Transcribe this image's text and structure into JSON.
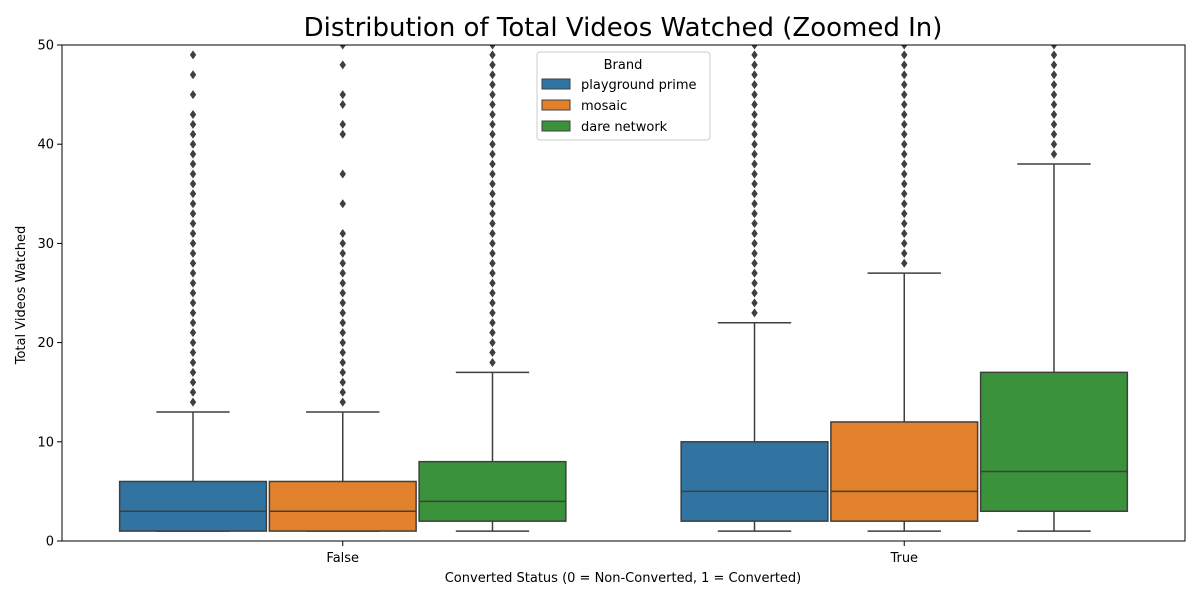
{
  "chart_data": {
    "type": "box",
    "title": "Distribution of Total Videos Watched (Zoomed In)",
    "xlabel": "Converted Status (0 = Non-Converted, 1 = Converted)",
    "ylabel": "Total Videos Watched",
    "ylim": [
      0,
      50
    ],
    "yticks": [
      0,
      10,
      20,
      30,
      40,
      50
    ],
    "categories": [
      "False",
      "True"
    ],
    "legend": {
      "title": "Brand",
      "placement": "top-center"
    },
    "grid": false,
    "series": [
      {
        "name": "playground prime",
        "color": "#3274a1",
        "boxes": [
          {
            "whisker_low": 1,
            "q1": 1,
            "median": 3,
            "q3": 6,
            "whisker_high": 13,
            "outliers": [
              14,
              15,
              16,
              17,
              18,
              19,
              20,
              21,
              22,
              23,
              24,
              25,
              26,
              27,
              28,
              29,
              30,
              31,
              32,
              33,
              34,
              35,
              36,
              37,
              38,
              39,
              40,
              41,
              42,
              43,
              45,
              47,
              49
            ]
          },
          {
            "whisker_low": 1,
            "q1": 2,
            "median": 5,
            "q3": 10,
            "whisker_high": 22,
            "outliers": [
              23,
              24,
              25,
              26,
              27,
              28,
              29,
              30,
              31,
              32,
              33,
              34,
              35,
              36,
              37,
              38,
              39,
              40,
              41,
              42,
              43,
              44,
              45,
              46,
              47,
              48,
              49,
              50
            ]
          }
        ]
      },
      {
        "name": "mosaic",
        "color": "#e1812c",
        "boxes": [
          {
            "whisker_low": 1,
            "q1": 1,
            "median": 3,
            "q3": 6,
            "whisker_high": 13,
            "outliers": [
              14,
              15,
              16,
              17,
              18,
              19,
              20,
              21,
              22,
              23,
              24,
              25,
              26,
              27,
              28,
              29,
              30,
              31,
              34,
              37,
              41,
              42,
              44,
              45,
              48,
              50
            ]
          },
          {
            "whisker_low": 1,
            "q1": 2,
            "median": 5,
            "q3": 12,
            "whisker_high": 27,
            "outliers": [
              28,
              29,
              30,
              31,
              32,
              33,
              34,
              35,
              36,
              37,
              38,
              39,
              40,
              41,
              42,
              43,
              44,
              45,
              46,
              47,
              48,
              49,
              50
            ]
          }
        ]
      },
      {
        "name": "dare network",
        "color": "#3a923a",
        "boxes": [
          {
            "whisker_low": 1,
            "q1": 2,
            "median": 4,
            "q3": 8,
            "whisker_high": 17,
            "outliers": [
              18,
              19,
              20,
              21,
              22,
              23,
              24,
              25,
              26,
              27,
              28,
              29,
              30,
              31,
              32,
              33,
              34,
              35,
              36,
              37,
              38,
              39,
              40,
              41,
              42,
              43,
              44,
              45,
              46,
              47,
              48,
              49,
              50
            ]
          },
          {
            "whisker_low": 1,
            "q1": 3,
            "median": 7,
            "q3": 17,
            "whisker_high": 38,
            "outliers": [
              39,
              40,
              41,
              42,
              43,
              44,
              45,
              46,
              47,
              48,
              49,
              50
            ]
          }
        ]
      }
    ]
  }
}
